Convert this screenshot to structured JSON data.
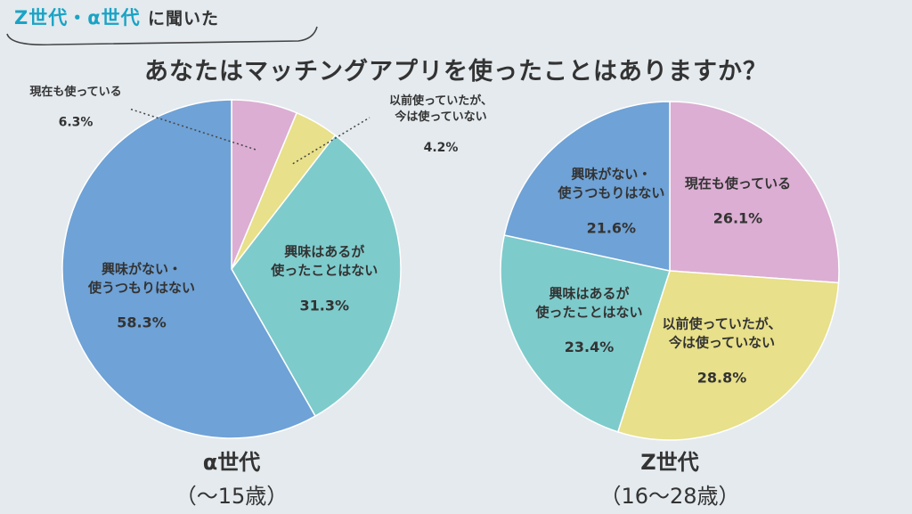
{
  "header": {
    "tag_accent": "Z世代・α世代",
    "tag_rest": "に聞いた",
    "question": "あなたはマッチングアプリを使ったことはありますか？"
  },
  "charts": [
    {
      "title": "α世代",
      "subtitle": "（〜15歳）"
    },
    {
      "title": "Z世代",
      "subtitle": "（16〜28歳）"
    }
  ],
  "chart_data": [
    {
      "type": "pie",
      "title": "α世代",
      "subtitle": "（〜15歳）",
      "slices": [
        {
          "label": "現在も使っている",
          "value": 6.3,
          "value_label": "6.3%",
          "color": "#dcaed3"
        },
        {
          "label": "以前使っていたが、今は使っていない",
          "value": 4.2,
          "value_label": "4.2%",
          "color": "#e8e08a"
        },
        {
          "label": "興味はあるが使ったことはない",
          "value": 31.3,
          "value_label": "31.3%",
          "color": "#7ecbcc"
        },
        {
          "label": "興味がない・使うつもりはない",
          "value": 58.3,
          "value_label": "58.3%",
          "color": "#6fa2d6"
        }
      ]
    },
    {
      "type": "pie",
      "title": "Z世代",
      "subtitle": "（16〜28歳）",
      "slices": [
        {
          "label": "現在も使っている",
          "value": 26.1,
          "value_label": "26.1%",
          "color": "#dcaed3"
        },
        {
          "label": "以前使っていたが、今は使っていない",
          "value": 28.8,
          "value_label": "28.8%",
          "color": "#e8e08a"
        },
        {
          "label": "興味はあるが使ったことはない",
          "value": 23.4,
          "value_label": "23.4%",
          "color": "#7ecbcc"
        },
        {
          "label": "興味がない・使うつもりはない",
          "value": 21.6,
          "value_label": "21.6%",
          "color": "#6fa2d6"
        }
      ]
    }
  ]
}
